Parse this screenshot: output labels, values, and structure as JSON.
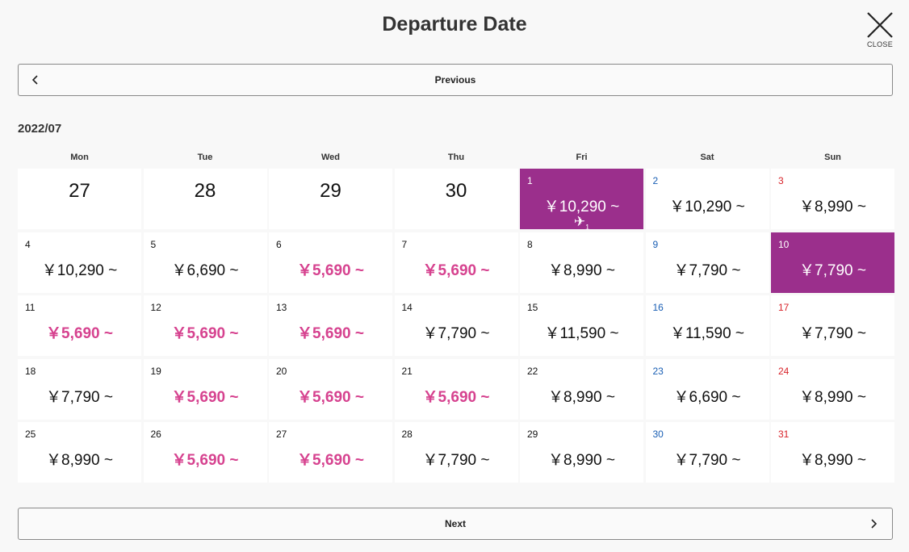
{
  "header": {
    "title": "Departure Date",
    "close_label": "CLOSE"
  },
  "nav": {
    "previous_label": "Previous",
    "next_label": "Next"
  },
  "calendar": {
    "month": "2022/07",
    "weekdays": [
      "Mon",
      "Tue",
      "Wed",
      "Thu",
      "Fri",
      "Sat",
      "Sun"
    ],
    "prev_month_days": [
      "27",
      "28",
      "29",
      "30"
    ],
    "days": [
      {
        "day": "1",
        "price": "￥10,290 ~",
        "low": false,
        "selected": true,
        "flight_count": "1"
      },
      {
        "day": "2",
        "price": "￥10,290 ~",
        "low": false
      },
      {
        "day": "3",
        "price": "￥8,990 ~",
        "low": false
      },
      {
        "day": "4",
        "price": "￥10,290 ~",
        "low": false
      },
      {
        "day": "5",
        "price": "￥6,690 ~",
        "low": false
      },
      {
        "day": "6",
        "price": "￥5,690 ~",
        "low": true
      },
      {
        "day": "7",
        "price": "￥5,690 ~",
        "low": true
      },
      {
        "day": "8",
        "price": "￥8,990 ~",
        "low": false
      },
      {
        "day": "9",
        "price": "￥7,790 ~",
        "low": false
      },
      {
        "day": "10",
        "price": "￥7,790 ~",
        "low": false,
        "selected": true
      },
      {
        "day": "11",
        "price": "￥5,690 ~",
        "low": true
      },
      {
        "day": "12",
        "price": "￥5,690 ~",
        "low": true
      },
      {
        "day": "13",
        "price": "￥5,690 ~",
        "low": true
      },
      {
        "day": "14",
        "price": "￥7,790 ~",
        "low": false
      },
      {
        "day": "15",
        "price": "￥11,590 ~",
        "low": false
      },
      {
        "day": "16",
        "price": "￥11,590 ~",
        "low": false
      },
      {
        "day": "17",
        "price": "￥7,790 ~",
        "low": false
      },
      {
        "day": "18",
        "price": "￥7,790 ~",
        "low": false
      },
      {
        "day": "19",
        "price": "￥5,690 ~",
        "low": true
      },
      {
        "day": "20",
        "price": "￥5,690 ~",
        "low": true
      },
      {
        "day": "21",
        "price": "￥5,690 ~",
        "low": true
      },
      {
        "day": "22",
        "price": "￥8,990 ~",
        "low": false
      },
      {
        "day": "23",
        "price": "￥6,690 ~",
        "low": false
      },
      {
        "day": "24",
        "price": "￥8,990 ~",
        "low": false
      },
      {
        "day": "25",
        "price": "￥8,990 ~",
        "low": false
      },
      {
        "day": "26",
        "price": "￥5,690 ~",
        "low": true
      },
      {
        "day": "27",
        "price": "￥5,690 ~",
        "low": true
      },
      {
        "day": "28",
        "price": "￥7,790 ~",
        "low": false
      },
      {
        "day": "29",
        "price": "￥8,990 ~",
        "low": false
      },
      {
        "day": "30",
        "price": "￥7,790 ~",
        "low": false
      },
      {
        "day": "31",
        "price": "￥8,990 ~",
        "low": false
      }
    ]
  },
  "icons": {
    "close": "close-x-icon",
    "prev": "chevron-left-icon",
    "next": "chevron-right-icon",
    "plane": "airplane-icon"
  },
  "colors": {
    "selected": "#9b2f8c",
    "low_price": "#d6428f",
    "saturday": "#1a5fb4",
    "sunday": "#d8232a"
  }
}
